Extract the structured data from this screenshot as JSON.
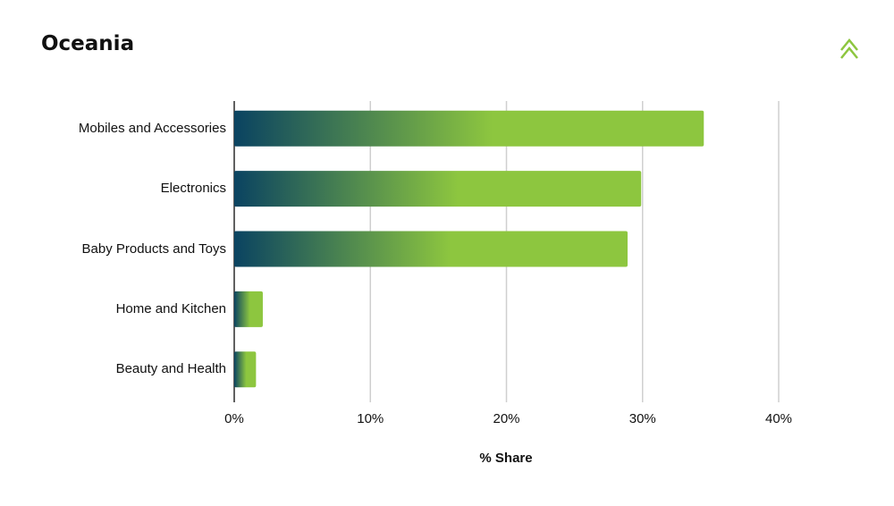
{
  "chart_data": {
    "type": "barh",
    "title": "Oceania",
    "xlabel": "% Share",
    "categories": [
      "Mobiles and Accessories",
      "Electronics",
      "Baby Products and Toys",
      "Home and Kitchen",
      "Beauty and Health"
    ],
    "values": [
      34.5,
      29.9,
      28.9,
      2.1,
      1.6
    ],
    "color": "#8dc63f",
    "gradient_from": "#0a4361",
    "xlim": [
      0,
      40
    ],
    "xticks": [
      {
        "value": 0,
        "label": "0%"
      },
      {
        "value": 10,
        "label": "10%"
      },
      {
        "value": 20,
        "label": "20%"
      },
      {
        "value": 30,
        "label": "30%"
      },
      {
        "value": 40,
        "label": "40%"
      }
    ],
    "grid": true
  }
}
